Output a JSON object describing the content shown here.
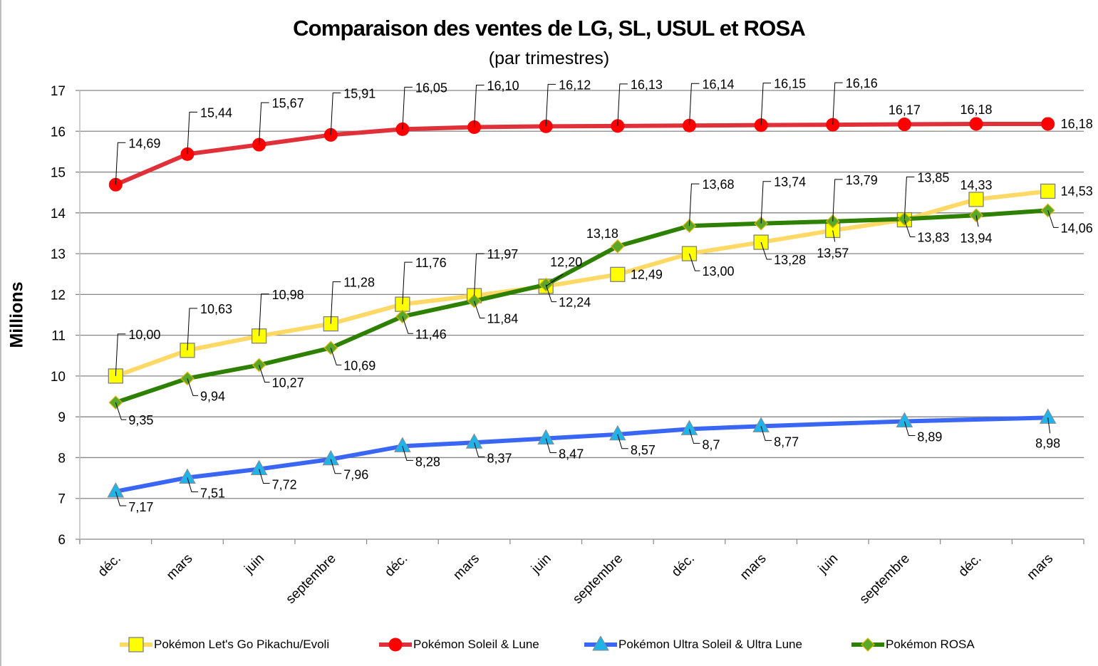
{
  "chart_data": {
    "type": "line",
    "title": "Comparaison des ventes de LG, SL, USUL et ROSA",
    "subtitle": "(par trimestres)",
    "xlabel": "",
    "ylabel": "Millions",
    "ylim": [
      6,
      17
    ],
    "yticks": [
      "6",
      "7",
      "8",
      "9",
      "10",
      "11",
      "12",
      "13",
      "14",
      "15",
      "16",
      "17"
    ],
    "grid": true,
    "legend_position": "bottom",
    "categories": [
      "déc.",
      "mars",
      "juin",
      "septembre",
      "déc.",
      "mars",
      "juin",
      "septembre",
      "déc.",
      "mars",
      "juin",
      "septembre",
      "déc.",
      "mars"
    ],
    "series": [
      {
        "name": "Pokémon Let's Go Pikachu/Evoli",
        "line_color": "#ffd966",
        "marker": "square",
        "marker_color": "#ffff00",
        "marker_edge": "#7f7f7f",
        "values": [
          10.0,
          10.63,
          10.98,
          11.28,
          11.76,
          11.97,
          12.2,
          12.49,
          13.0,
          13.28,
          13.57,
          13.83,
          14.33,
          14.53
        ],
        "labels": [
          "10,00",
          "10,63",
          "10,98",
          "11,28",
          "11,76",
          "11,97",
          "12,20",
          "12,49",
          "13,00",
          "13,28",
          "13,57",
          "13,83",
          "14,33",
          "14,53"
        ]
      },
      {
        "name": "Pokémon Soleil & Lune",
        "line_color": "#e0313a",
        "marker": "circle",
        "marker_color": "#ff0000",
        "marker_edge": "#ff0000",
        "values": [
          14.69,
          15.44,
          15.67,
          15.91,
          16.05,
          16.1,
          16.12,
          16.13,
          16.14,
          16.15,
          16.16,
          16.17,
          16.18,
          16.18
        ],
        "labels": [
          "14,69",
          "15,44",
          "15,67",
          "15,91",
          "16,05",
          "16,10",
          "16,12",
          "16,13",
          "16,14",
          "16,15",
          "16,16",
          "16,17",
          "16,18",
          "16,18"
        ]
      },
      {
        "name": "Pokémon Ultra Soleil & Ultra Lune",
        "line_color": "#3a66f5",
        "marker": "triangle",
        "marker_color": "#1fb3ea",
        "marker_edge": "#8c8c8c",
        "values": [
          7.17,
          7.51,
          7.72,
          7.96,
          8.28,
          8.37,
          8.47,
          8.57,
          8.7,
          8.77,
          null,
          8.89,
          null,
          8.98
        ],
        "labels": [
          "7,17",
          "7,51",
          "7,72",
          "7,96",
          "8,28",
          "8,37",
          "8,47",
          "8,57",
          "8,7",
          "8,77",
          null,
          "8,89",
          null,
          "8,98"
        ]
      },
      {
        "name": "Pokémon ROSA",
        "line_color": "#2e8000",
        "marker": "diamond",
        "marker_color": "#5aa82a",
        "marker_edge": "#e3b400",
        "values": [
          9.35,
          9.94,
          10.27,
          10.69,
          11.46,
          11.84,
          12.24,
          13.18,
          13.68,
          13.74,
          13.79,
          13.85,
          13.94,
          14.06
        ],
        "labels": [
          "9,35",
          "9,94",
          "10,27",
          "10,69",
          "11,46",
          "11,84",
          "12,24",
          "13,18",
          "13,68",
          "13,74",
          "13,79",
          "13,85",
          "13,94",
          "14,06"
        ]
      }
    ]
  }
}
